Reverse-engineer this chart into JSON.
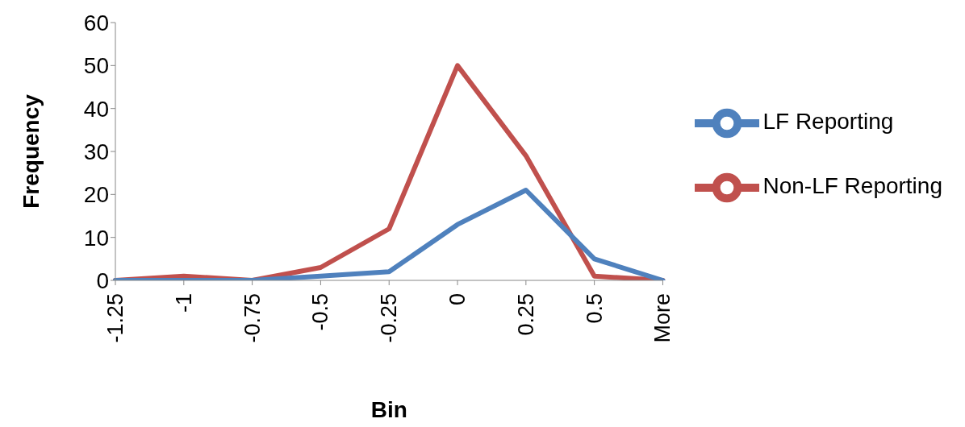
{
  "chart_data": {
    "type": "line",
    "xlabel": "Bin",
    "ylabel": "Frequency",
    "categories": [
      "-1.25",
      "-1",
      "-0.75",
      "-0.5",
      "-0.25",
      "0",
      "0.25",
      "0.5",
      "More"
    ],
    "series": [
      {
        "name": "Non-LF Reporting",
        "color": "#c0504d",
        "values": [
          0,
          1,
          0,
          3,
          12,
          50,
          29,
          1,
          0
        ]
      },
      {
        "name": "LF Reporting",
        "color": "#4f81bd",
        "values": [
          0,
          0,
          0,
          1,
          2,
          13,
          21,
          5,
          0
        ]
      }
    ],
    "ylim": [
      0,
      60
    ],
    "yticks": [
      0,
      10,
      20,
      30,
      40,
      50,
      60
    ],
    "grid": false,
    "legend": "right",
    "marker": "none",
    "line_style": "solid"
  }
}
